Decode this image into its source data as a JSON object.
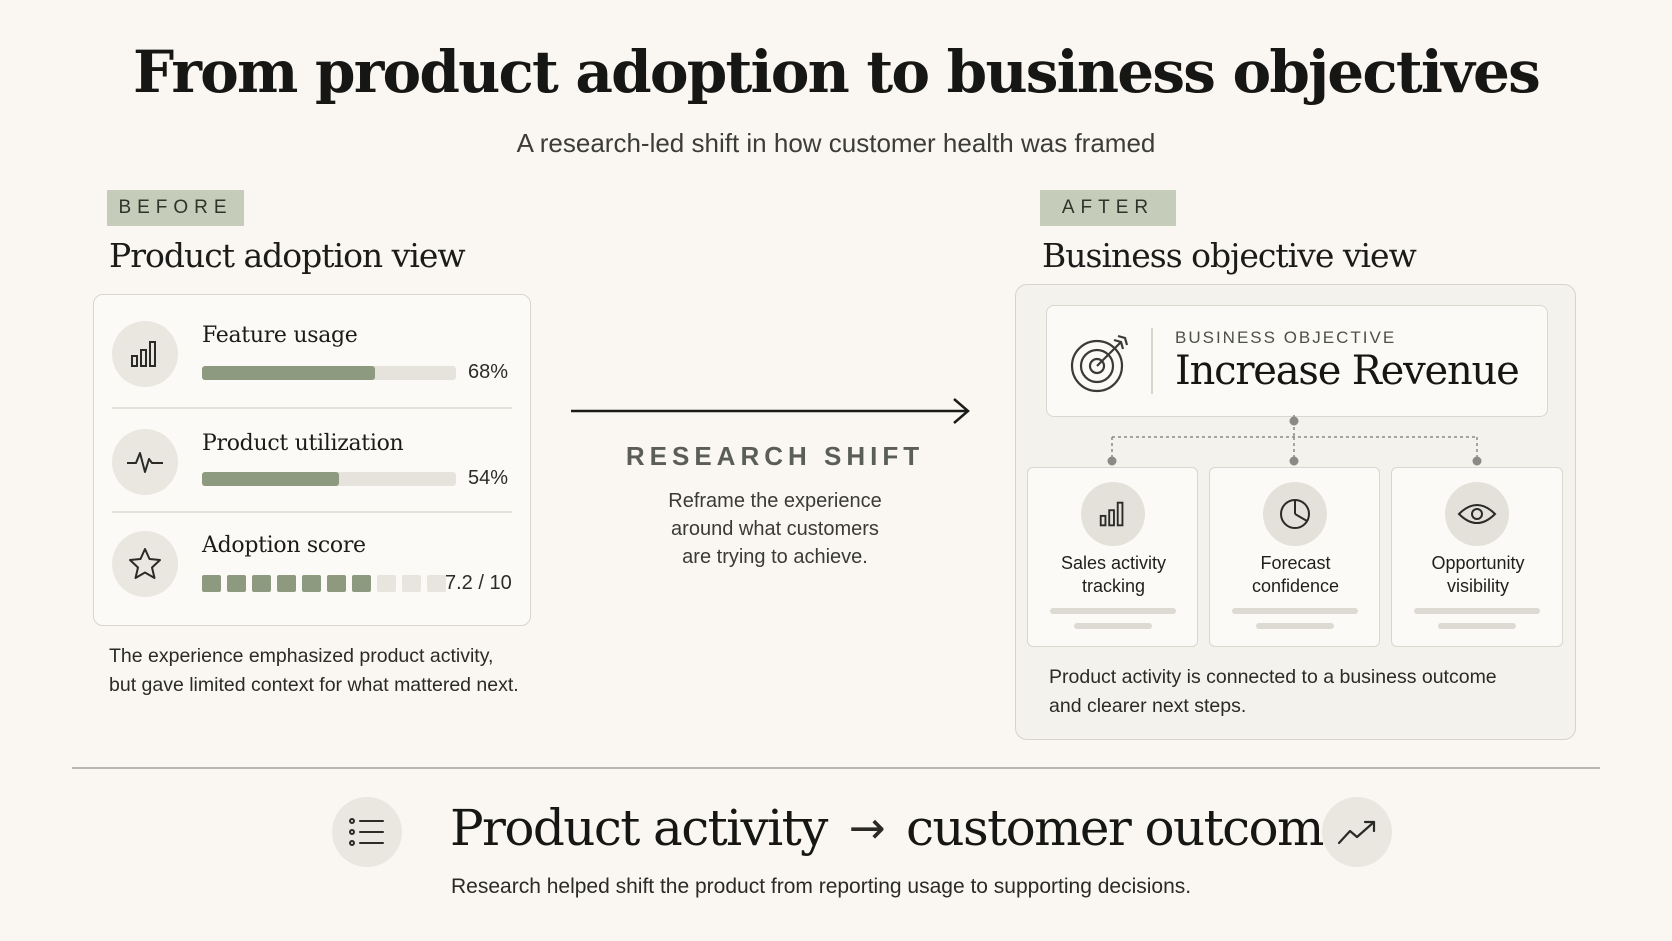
{
  "title": "From product adoption to business objectives",
  "subtitle": "A research-led shift in how customer health was framed",
  "before": {
    "tag": "BEFORE",
    "heading": "Product adoption view",
    "metrics": [
      {
        "label": "Feature usage",
        "value": "68%",
        "fraction": 0.68,
        "icon": "bar-chart-icon"
      },
      {
        "label": "Product utilization",
        "value": "54%",
        "fraction": 0.54,
        "icon": "pulse-icon"
      },
      {
        "label": "Adoption score",
        "value": "7.2 / 10",
        "score": 7.2,
        "max": 10,
        "icon": "star-icon"
      }
    ],
    "caption_line1": "The experience emphasized product activity,",
    "caption_line2": "but gave limited context for what mattered next."
  },
  "shift": {
    "label": "RESEARCH SHIFT",
    "line1": "Reframe the experience",
    "line2": "around what customers",
    "line3": "are trying to achieve."
  },
  "after": {
    "tag": "AFTER",
    "heading": "Business objective view",
    "objective_kicker": "BUSINESS OBJECTIVE",
    "objective_title": "Increase Revenue",
    "objective_icon": "target-icon",
    "cards": [
      {
        "line1": "Sales activity",
        "line2": "tracking",
        "icon": "bar-chart-icon"
      },
      {
        "line1": "Forecast",
        "line2": "confidence",
        "icon": "pie-chart-icon"
      },
      {
        "line1": "Opportunity",
        "line2": "visibility",
        "icon": "eye-icon"
      }
    ],
    "caption_line1": "Product activity is connected to a business outcome",
    "caption_line2": "and clearer next steps."
  },
  "footer": {
    "left_text": "Product activity",
    "arrow": "→",
    "right_text": "customer outcome",
    "caption": "Research helped shift the product from reporting usage to supporting decisions.",
    "left_icon": "list-icon",
    "right_icon": "trending-up-icon"
  },
  "colors": {
    "background": "#faf7f2",
    "accent": "#8e9a7f",
    "tag": "#c6ccba"
  }
}
